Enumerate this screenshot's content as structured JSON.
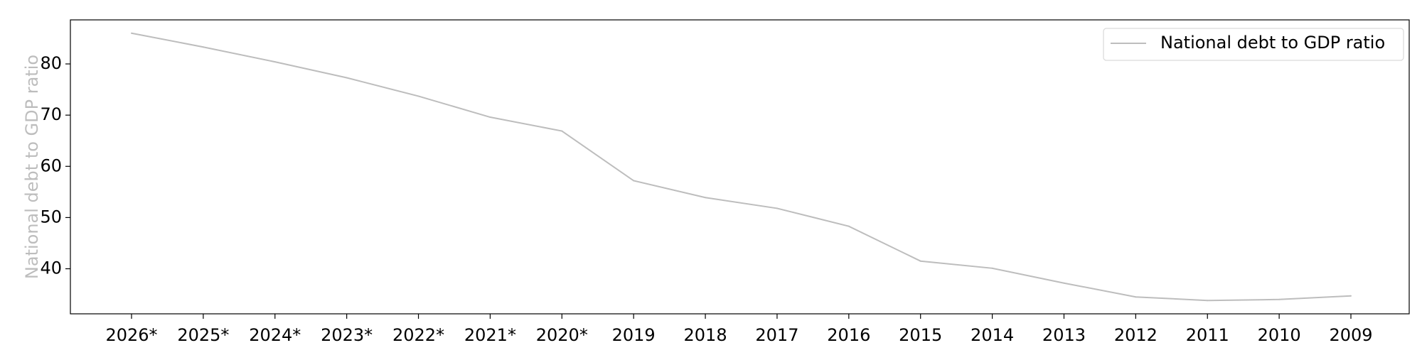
{
  "chart_data": {
    "type": "line",
    "title": "",
    "xlabel": "",
    "ylabel": "National debt to GDP ratio",
    "categories": [
      "2026*",
      "2025*",
      "2024*",
      "2023*",
      "2022*",
      "2021*",
      "2020*",
      "2019",
      "2018",
      "2017",
      "2016",
      "2015",
      "2014",
      "2013",
      "2012",
      "2011",
      "2010",
      "2009"
    ],
    "series": [
      {
        "name": "National debt to GDP ratio",
        "color": "#bdbdbd",
        "values": [
          86.0,
          83.3,
          80.4,
          77.3,
          73.7,
          69.6,
          66.9,
          57.2,
          53.9,
          51.8,
          48.3,
          41.5,
          40.1,
          37.2,
          34.5,
          33.8,
          34.0,
          34.7
        ]
      }
    ],
    "yticks": [
      40,
      50,
      60,
      70,
      80
    ],
    "ylim": [
      31.2,
      88.6
    ],
    "grid": false,
    "legend_position": "top-right"
  }
}
